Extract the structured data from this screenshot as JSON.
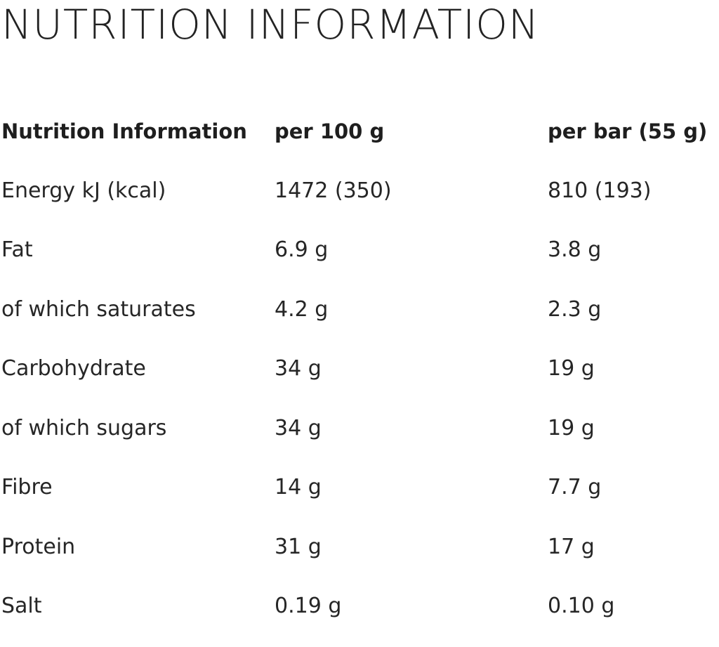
{
  "page_title": "NUTRITION INFORMATION",
  "table": {
    "headers": [
      "Nutrition Information",
      "per 100 g",
      "per bar (55 g)"
    ],
    "rows": [
      [
        "Energy kJ (kcal)",
        "1472 (350)",
        "810 (193)"
      ],
      [
        "Fat",
        "6.9 g",
        "3.8 g"
      ],
      [
        "of which saturates",
        "4.2 g",
        "2.3 g"
      ],
      [
        "Carbohydrate",
        "34 g",
        "19 g"
      ],
      [
        "of which sugars",
        "34 g",
        "19 g"
      ],
      [
        "Fibre",
        "14 g",
        "7.7 g"
      ],
      [
        "Protein",
        "31 g",
        "17 g"
      ],
      [
        "Salt",
        "0.19 g",
        "0.10 g"
      ]
    ]
  }
}
